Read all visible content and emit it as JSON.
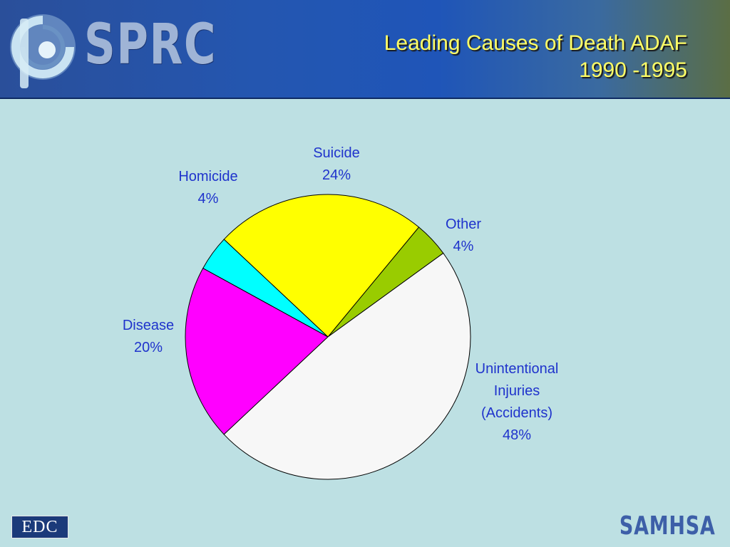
{
  "header": {
    "logo_text": "SPRC",
    "title_line1": "Leading Causes of Death  ADAF",
    "title_line2": "1990 -1995"
  },
  "chart_data": {
    "type": "pie",
    "title": "Leading Causes of Death  ADAF 1990 -1995",
    "start_angle_deg": 36,
    "slices": [
      {
        "name": "Other",
        "value": 4,
        "percent_label": "4%",
        "color": "#99cc00"
      },
      {
        "name": "Suicide",
        "value": 24,
        "percent_label": "24%",
        "color": "#ffff00"
      },
      {
        "name": "Homicide",
        "value": 4,
        "percent_label": "4%",
        "color": "#00ffff"
      },
      {
        "name": "Disease",
        "value": 20,
        "percent_label": "20%",
        "color": "#ff00ff"
      },
      {
        "name": "Unintentional Injuries (Accidents)",
        "value": 48,
        "percent_label": "48%",
        "color": "#f7f7f7"
      }
    ],
    "labels": [
      {
        "lines": [
          "Suicide",
          "24%"
        ]
      },
      {
        "lines": [
          "Homicide",
          "4%"
        ]
      },
      {
        "lines": [
          "Other",
          "4%"
        ]
      },
      {
        "lines": [
          "Disease",
          "20%"
        ]
      },
      {
        "lines": [
          "Unintentional",
          "Injuries",
          "(Accidents)",
          "48%"
        ]
      }
    ]
  },
  "footer": {
    "left_logo_text": "EDC",
    "right_logo_text": "SAMHSA"
  },
  "colors": {
    "background": "#bde0e3",
    "title": "#ffff66",
    "label": "#1f33cc"
  }
}
